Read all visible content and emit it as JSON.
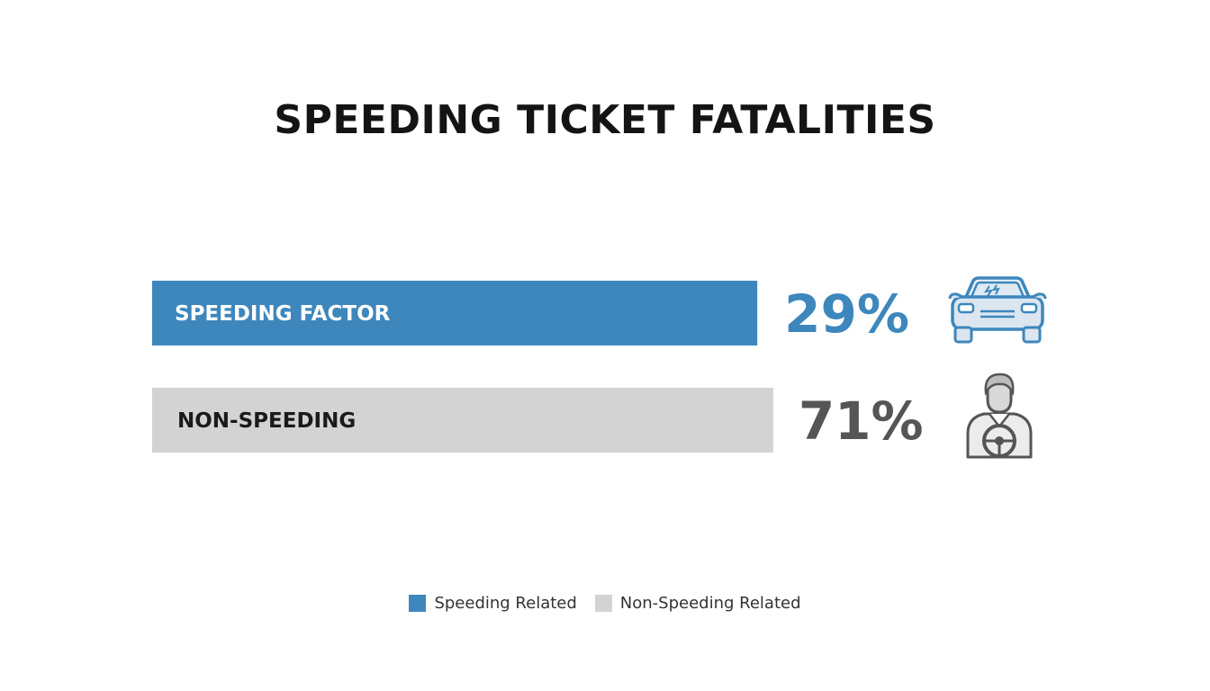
{
  "chart_data": {
    "type": "bar",
    "orientation": "horizontal",
    "title": "SPEEDING TICKET FATALITIES",
    "categories": [
      "SPEEDING FACTOR",
      "NON-SPEEDING"
    ],
    "values": [
      29,
      71
    ],
    "value_labels": [
      "29%",
      "71%"
    ],
    "unit": "%",
    "bar_colors": [
      "#3d87bd",
      "#d3d3d3"
    ],
    "bar_label_colors": [
      "#ffffff",
      "#1a1a1a"
    ],
    "value_label_colors": [
      "#3d87bd",
      "#555555"
    ],
    "icons": [
      "car-icon",
      "driver-icon"
    ],
    "legend": {
      "placement": "bottom-center",
      "items": [
        {
          "label": "Speeding Related",
          "color": "#3d87bd"
        },
        {
          "label": "Non-Speeding Related",
          "color": "#d3d3d3"
        }
      ]
    },
    "grid": false
  }
}
